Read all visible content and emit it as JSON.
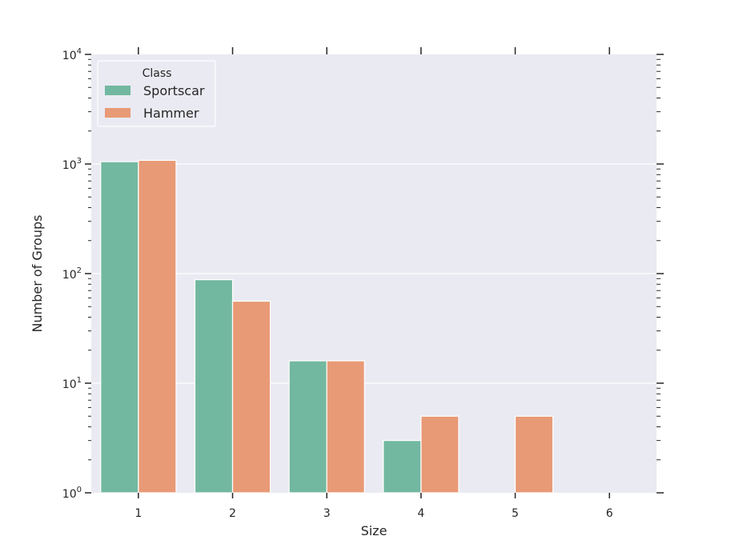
{
  "chart_data": {
    "type": "bar",
    "xlabel": "Size",
    "ylabel": "Number of Groups",
    "categories": [
      "1",
      "2",
      "3",
      "4",
      "5",
      "6"
    ],
    "yscale": "log",
    "ylim": [
      1,
      10000
    ],
    "y_tick_labels": [
      {
        "base": "10",
        "exp": "0"
      },
      {
        "base": "10",
        "exp": "1"
      },
      {
        "base": "10",
        "exp": "2"
      },
      {
        "base": "10",
        "exp": "3"
      },
      {
        "base": "10",
        "exp": "4"
      }
    ],
    "grid": true,
    "legend": {
      "title": "Class",
      "placement": "upper-left"
    },
    "series": [
      {
        "name": "Sportscar",
        "color": "#72b8a0",
        "values": [
          1050,
          88,
          16,
          3,
          null,
          null
        ]
      },
      {
        "name": "Hammer",
        "color": "#e89a76",
        "values": [
          1080,
          56,
          16,
          5,
          5,
          null
        ]
      }
    ],
    "background_color": "#eaeaf2"
  }
}
